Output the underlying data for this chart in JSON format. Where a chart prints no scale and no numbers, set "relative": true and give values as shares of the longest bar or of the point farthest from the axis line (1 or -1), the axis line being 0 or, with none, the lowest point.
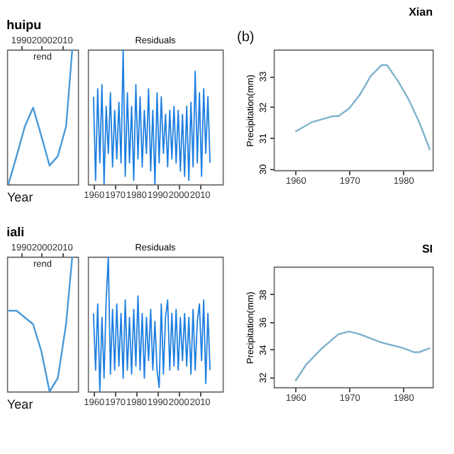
{
  "chart_data": [
    {
      "type": "line",
      "title": "huipu",
      "subtitle": "rend",
      "xlabel": "Year",
      "relative": true,
      "xlim": [
        1983.4,
        2017.8
      ],
      "xticks": [
        1990,
        2000,
        2010
      ],
      "tick_labels": "x",
      "x": [
        1984,
        1988,
        1992,
        1996,
        2000,
        2004,
        2008,
        2012,
        2015
      ],
      "series": [
        {
          "color": "#4a9ad8",
          "values": [
            0,
            0.21,
            0.43,
            0.57,
            0.36,
            0.14,
            0.21,
            0.43,
            1
          ]
        }
      ]
    },
    {
      "type": "line",
      "subtitle": "Residuals",
      "relative": true,
      "xlim": [
        1957.4,
        2021
      ],
      "xticks": [
        1960,
        1970,
        1980,
        1990,
        2000,
        2010
      ],
      "tick_labels": "x",
      "x": [
        1960,
        1961,
        1962,
        1963,
        1964,
        1965,
        1966,
        1967,
        1968,
        1969,
        1970,
        1971,
        1972,
        1973,
        1974,
        1975,
        1976,
        1977,
        1978,
        1979,
        1980,
        1981,
        1982,
        1983,
        1984,
        1985,
        1986,
        1987,
        1988,
        1989,
        1990,
        1991,
        1992,
        1993,
        1994,
        1995,
        1996,
        1997,
        1998,
        1999,
        2000,
        2001,
        2002,
        2003,
        2004,
        2005,
        2006,
        2007,
        2008,
        2009,
        2010,
        2011,
        2012,
        2013,
        2014,
        2015
      ],
      "series": [
        {
          "color": "#1e7fe0",
          "values": [
            0.65,
            0.03,
            0.71,
            0.16,
            0.74,
            0,
            0.58,
            0.23,
            0.68,
            0.13,
            0.55,
            0.19,
            0.61,
            0.16,
            1,
            0.06,
            0.68,
            0.16,
            0.58,
            0.03,
            0.74,
            0.19,
            0.65,
            0.13,
            0.55,
            0.23,
            0.71,
            0.1,
            0.55,
            0,
            0.68,
            0.16,
            0.65,
            0.23,
            0.52,
            0.13,
            0.55,
            0.19,
            0.58,
            0.16,
            0.55,
            0.1,
            0.52,
            0.06,
            0.58,
            0.03,
            0.61,
            0.13,
            0.84,
            0.16,
            0.68,
            0.06,
            0.71,
            0.23,
            0.65,
            0.16
          ]
        }
      ]
    },
    {
      "type": "line",
      "title": "Xian",
      "ylabel": "Precipitation(mm)",
      "annotations": [
        "(b)"
      ],
      "xlim": [
        1956,
        1985.5
      ],
      "xticks": [
        1960,
        1970,
        1980
      ],
      "ylim": [
        29.95,
        33.85
      ],
      "yticks": [
        30,
        31,
        32,
        33
      ],
      "x": [
        1960,
        1963,
        1967,
        1968,
        1970,
        1972,
        1974,
        1976,
        1977,
        1979,
        1981,
        1983,
        1985
      ],
      "series": [
        {
          "color": "#7fb3cc",
          "values": [
            31.2,
            31.5,
            31.7,
            31.7,
            31.95,
            32.4,
            33.0,
            33.35,
            33.35,
            32.85,
            32.25,
            31.5,
            30.6
          ]
        }
      ]
    },
    {
      "type": "line",
      "title": "iali",
      "subtitle": "rend",
      "xlabel": "Year",
      "relative": true,
      "xlim": [
        1983.4,
        2017.8
      ],
      "xticks": [
        1990,
        2000,
        2010
      ],
      "tick_labels": "x",
      "x": [
        1984,
        1988,
        1992,
        1996,
        2000,
        2004,
        2008,
        2012,
        2015
      ],
      "series": [
        {
          "color": "#4a9ad8",
          "values": [
            0.6,
            0.6,
            0.55,
            0.5,
            0.3,
            0,
            0.1,
            0.5,
            1
          ]
        }
      ]
    },
    {
      "type": "line",
      "subtitle": "Residuals",
      "relative": true,
      "xlim": [
        1957.4,
        2021
      ],
      "xticks": [
        1960,
        1970,
        1980,
        1990,
        2000,
        2010
      ],
      "tick_labels": "x",
      "x": [
        1960,
        1961,
        1962,
        1963,
        1964,
        1965,
        1966,
        1967,
        1968,
        1969,
        1970,
        1971,
        1972,
        1973,
        1974,
        1975,
        1976,
        1977,
        1978,
        1979,
        1980,
        1981,
        1982,
        1983,
        1984,
        1985,
        1986,
        1987,
        1988,
        1989,
        1990,
        1991,
        1992,
        1993,
        1994,
        1995,
        1996,
        1997,
        1998,
        1999,
        2000,
        2001,
        2002,
        2003,
        2004,
        2005,
        2006,
        2007,
        2008,
        2009,
        2010,
        2011,
        2012,
        2013,
        2014,
        2015
      ],
      "series": [
        {
          "color": "#1e7fe0",
          "values": [
            0.58,
            0.16,
            0.65,
            0,
            0.55,
            0.1,
            0.68,
            1,
            0.13,
            0.61,
            0.16,
            0.65,
            0.19,
            0.58,
            0.1,
            0.68,
            0.16,
            0.55,
            0.13,
            0.61,
            0.19,
            0.71,
            0.16,
            0.58,
            0.1,
            0.55,
            0.23,
            0.61,
            0.16,
            0.52,
            0.16,
            0.03,
            0.65,
            0.13,
            0.55,
            0.68,
            0.16,
            0.58,
            0.19,
            0.61,
            0.16,
            0.55,
            0.23,
            0.58,
            0.19,
            0.55,
            0.13,
            0.61,
            0.16,
            0.52,
            0.65,
            0.23,
            0.68,
            0.06,
            0.58,
            0.16
          ]
        }
      ]
    },
    {
      "type": "line",
      "title": "SI",
      "ylabel": "Precipitation(mm)",
      "xlim": [
        1956,
        1985.5
      ],
      "xticks": [
        1960,
        1970,
        1980
      ],
      "ylim": [
        31.25,
        40
      ],
      "yticks": [
        32,
        34,
        36,
        38
      ],
      "x": [
        1960,
        1962,
        1965,
        1968,
        1970,
        1972,
        1974,
        1976,
        1978,
        1980,
        1982,
        1983,
        1985
      ],
      "series": [
        {
          "color": "#7fb3cc",
          "values": [
            31.7,
            32.9,
            34.1,
            35.1,
            35.3,
            35.1,
            34.8,
            34.5,
            34.3,
            34.1,
            33.8,
            33.8,
            34.1
          ]
        }
      ]
    }
  ]
}
